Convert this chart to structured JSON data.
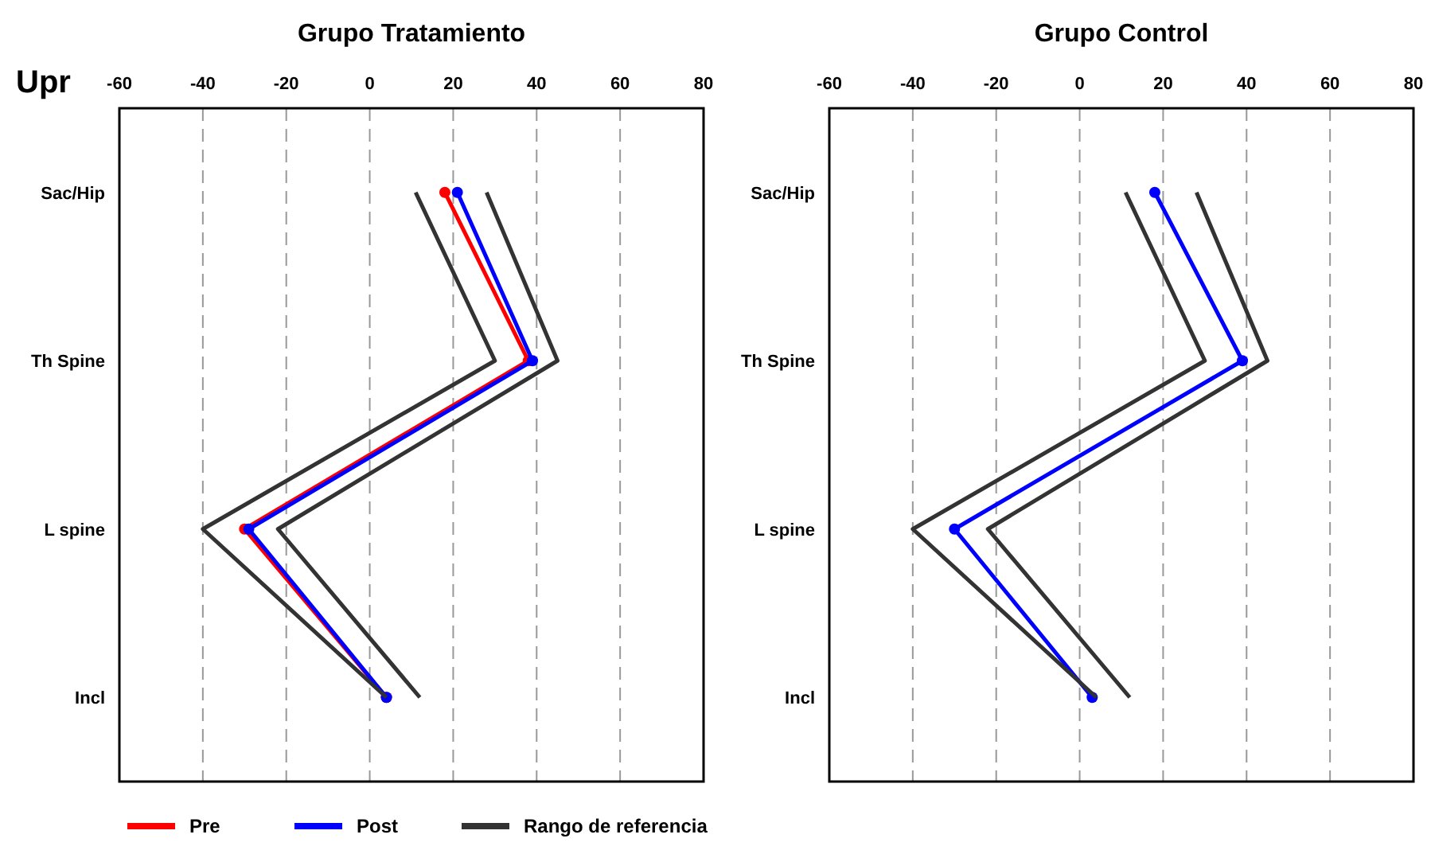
{
  "chart_data": [
    {
      "type": "line",
      "orientation": "horizontal",
      "title": "Grupo Tratamiento",
      "ylabel": "Upr",
      "categories": [
        "Sac/Hip",
        "Th Spine",
        "L spine",
        "Incl"
      ],
      "xlim": [
        -60,
        80
      ],
      "xticks": [
        -60,
        -40,
        -20,
        0,
        20,
        40,
        60,
        80
      ],
      "grid": "x",
      "legend": "bottom",
      "series": [
        {
          "name": "Pre",
          "color": "#ff0000",
          "marker": "circle",
          "values": [
            18,
            38,
            -30,
            4
          ]
        },
        {
          "name": "Post",
          "color": "#0000ff",
          "marker": "circle",
          "values": [
            21,
            39,
            -29,
            4
          ]
        },
        {
          "name": "Rango de referencia",
          "color": "#333333",
          "marker": "none",
          "values": [
            11,
            30,
            -40,
            4
          ]
        },
        {
          "color": "#333333",
          "marker": "none",
          "values": [
            28,
            45,
            -22,
            12
          ]
        }
      ]
    },
    {
      "type": "line",
      "orientation": "horizontal",
      "title": "Grupo Control",
      "categories": [
        "Sac/Hip",
        "Th Spine",
        "L spine",
        "Incl"
      ],
      "xlim": [
        -60,
        80
      ],
      "xticks": [
        -60,
        -40,
        -20,
        0,
        20,
        40,
        60,
        80
      ],
      "grid": "x",
      "series": [
        {
          "color": "#0000ff",
          "marker": "circle",
          "values": [
            18,
            39,
            -30,
            3
          ]
        },
        {
          "color": "#333333",
          "marker": "none",
          "values": [
            11,
            30,
            -40,
            4
          ]
        },
        {
          "color": "#333333",
          "marker": "none",
          "values": [
            28,
            45,
            -22,
            12
          ]
        }
      ]
    }
  ]
}
